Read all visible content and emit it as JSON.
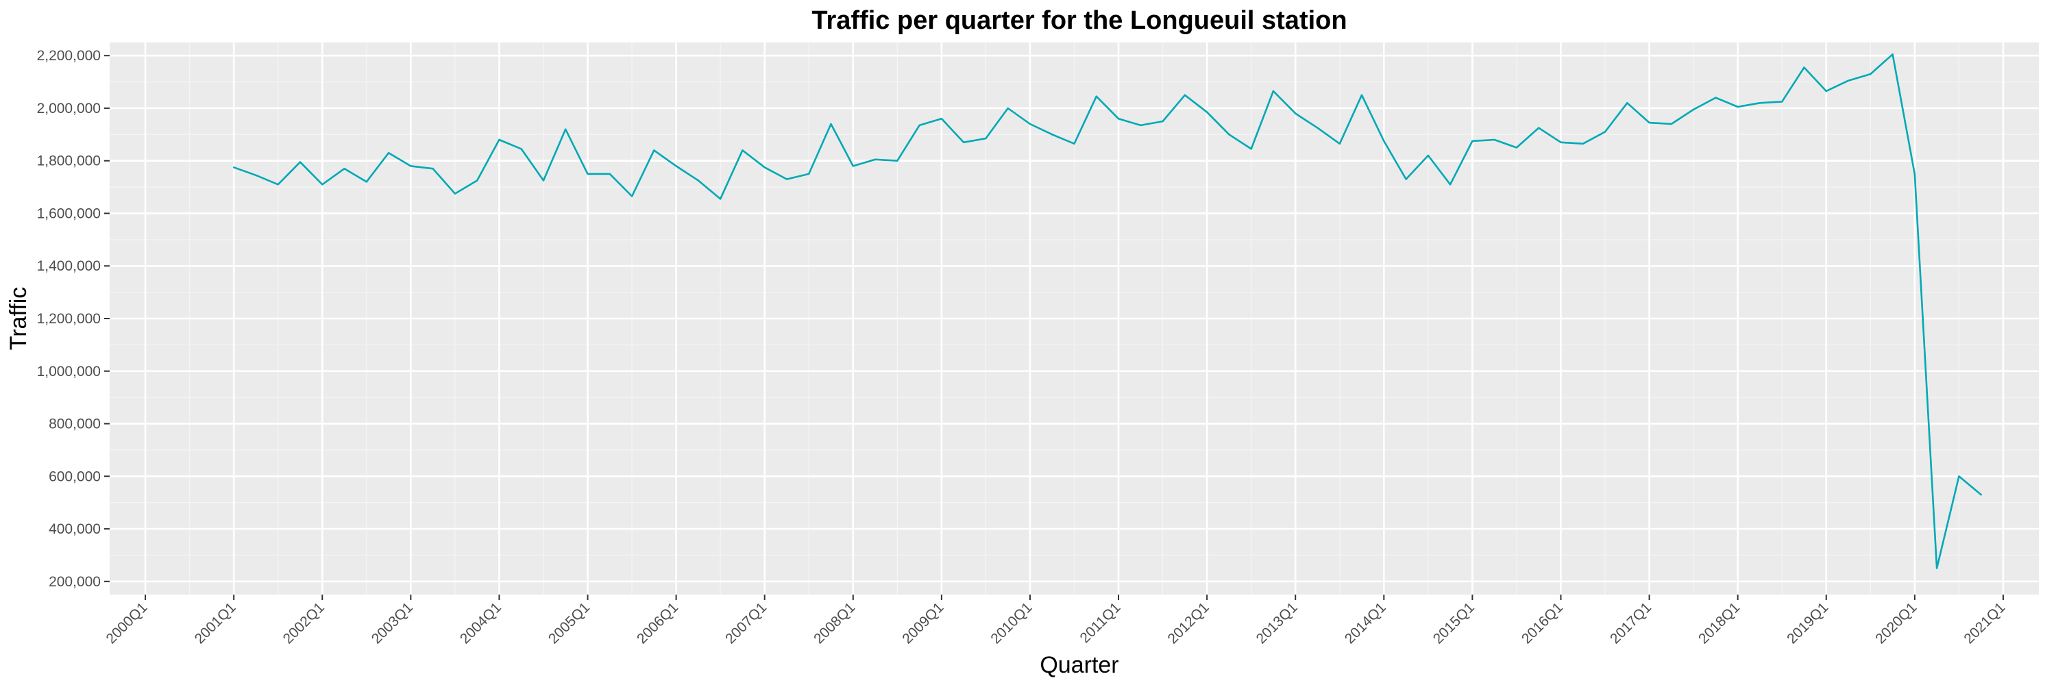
{
  "chart_data": {
    "type": "line",
    "title": "Traffic per quarter for the Longueuil station",
    "xlabel": "Quarter",
    "ylabel": "Traffic",
    "x_ticks": [
      "2000Q1",
      "2001Q1",
      "2002Q1",
      "2003Q1",
      "2004Q1",
      "2005Q1",
      "2006Q1",
      "2007Q1",
      "2008Q1",
      "2009Q1",
      "2010Q1",
      "2011Q1",
      "2012Q1",
      "2013Q1",
      "2014Q1",
      "2015Q1",
      "2016Q1",
      "2017Q1",
      "2018Q1",
      "2019Q1",
      "2020Q1",
      "2021Q1"
    ],
    "y_ticks": [
      200000,
      400000,
      600000,
      800000,
      1000000,
      1200000,
      1400000,
      1600000,
      1800000,
      2000000,
      2200000
    ],
    "y_tick_labels": [
      "200,000",
      "400,000",
      "600,000",
      "800,000",
      "1,000,000",
      "1,200,000",
      "1,400,000",
      "1,600,000",
      "1,800,000",
      "2,000,000",
      "2,200,000"
    ],
    "xlim": [
      "2000Q1",
      "2021Q1"
    ],
    "ylim": [
      150000,
      2250000
    ],
    "grid": true,
    "line_color": "#00a9b5",
    "panel_color": "#ebebeb",
    "series": [
      {
        "x": [
          "2001Q1",
          "2001Q2",
          "2001Q3",
          "2001Q4",
          "2002Q1",
          "2002Q2",
          "2002Q3",
          "2002Q4",
          "2003Q1",
          "2003Q2",
          "2003Q3",
          "2003Q4",
          "2004Q1",
          "2004Q2",
          "2004Q3",
          "2004Q4",
          "2005Q1",
          "2005Q2",
          "2005Q3",
          "2005Q4",
          "2006Q1",
          "2006Q2",
          "2006Q3",
          "2006Q4",
          "2007Q1",
          "2007Q2",
          "2007Q3",
          "2007Q4",
          "2008Q1",
          "2008Q2",
          "2008Q3",
          "2008Q4",
          "2009Q1",
          "2009Q2",
          "2009Q3",
          "2009Q4",
          "2010Q1",
          "2010Q2",
          "2010Q3",
          "2010Q4",
          "2011Q1",
          "2011Q2",
          "2011Q3",
          "2011Q4",
          "2012Q1",
          "2012Q2",
          "2012Q3",
          "2012Q4",
          "2013Q1",
          "2013Q2",
          "2013Q3",
          "2013Q4",
          "2014Q1",
          "2014Q2",
          "2014Q3",
          "2014Q4",
          "2015Q1",
          "2015Q2",
          "2015Q3",
          "2015Q4",
          "2016Q1",
          "2016Q2",
          "2016Q3",
          "2016Q4",
          "2017Q1",
          "2017Q2",
          "2017Q3",
          "2017Q4",
          "2018Q1",
          "2018Q2",
          "2018Q3",
          "2018Q4",
          "2019Q1",
          "2019Q2",
          "2019Q3",
          "2019Q4",
          "2020Q1",
          "2020Q2",
          "2020Q3",
          "2020Q4"
        ],
        "values": [
          1775000,
          1745000,
          1710000,
          1795000,
          1710000,
          1770000,
          1720000,
          1830000,
          1780000,
          1770000,
          1675000,
          1725000,
          1880000,
          1845000,
          1725000,
          1920000,
          1750000,
          1750000,
          1665000,
          1840000,
          1780000,
          1725000,
          1655000,
          1840000,
          1775000,
          1730000,
          1750000,
          1940000,
          1780000,
          1805000,
          1800000,
          1935000,
          1960000,
          1870000,
          1885000,
          2000000,
          1940000,
          1900000,
          1865000,
          2045000,
          1960000,
          1935000,
          1950000,
          2050000,
          1985000,
          1900000,
          1845000,
          2065000,
          1980000,
          1925000,
          1865000,
          2050000,
          1875000,
          1730000,
          1820000,
          1710000,
          1875000,
          1880000,
          1850000,
          1925000,
          1870000,
          1865000,
          1910000,
          2020000,
          1945000,
          1940000,
          1995000,
          2040000,
          2005000,
          2020000,
          2025000,
          2155000,
          2065000,
          2105000,
          2130000,
          2205000,
          1750000,
          250000,
          600000,
          530000
        ]
      }
    ]
  }
}
